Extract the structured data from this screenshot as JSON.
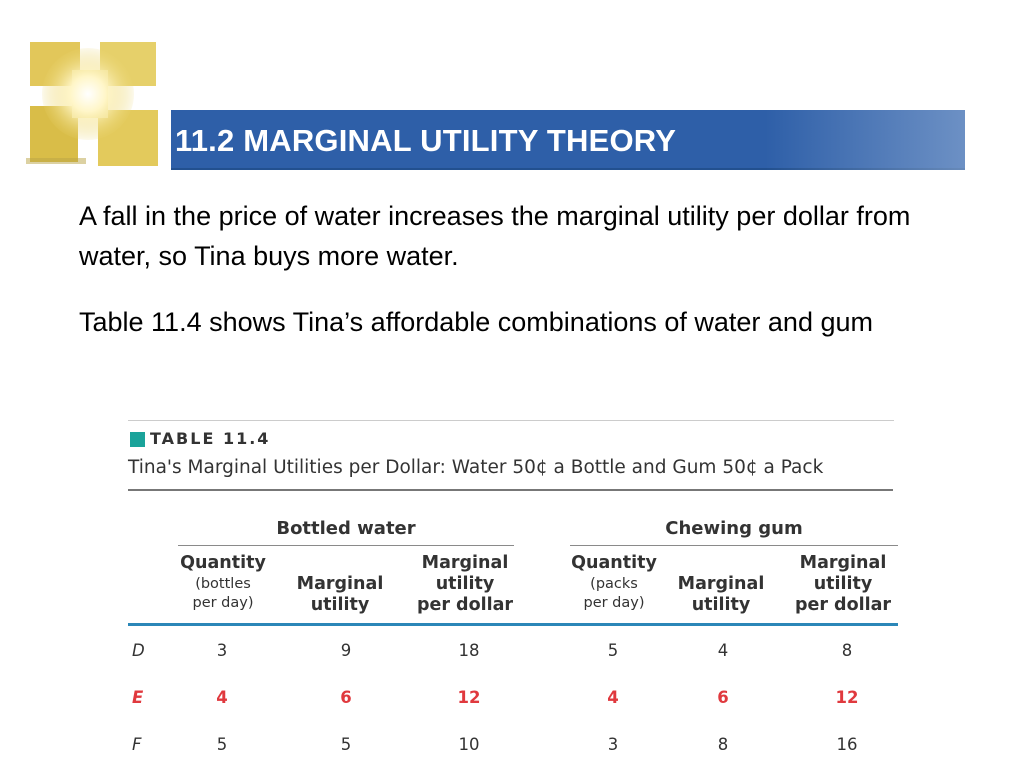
{
  "slide": {
    "title": "11.2 MARGINAL UTILITY THEORY",
    "paragraphs": [
      "A fall in the price of water increases the marginal utility per dollar from water, so Tina buys more water.",
      "Table 11.4 shows Tina’s affordable combinations of water and gum"
    ],
    "colors": {
      "title_bar": "#2e5fa8",
      "logo": "#e6cf63",
      "highlight": "#e0393e",
      "rule": "#2b87b8"
    }
  },
  "table": {
    "tag": "TABLE 11.4",
    "caption": "Tina's Marginal Utilities per Dollar: Water 50¢ a Bottle and Gum 50¢ a Pack",
    "groups": {
      "water": "Bottled water",
      "gum": "Chewing gum"
    },
    "columns": {
      "w_qty": {
        "l1": "Quantity",
        "l2": "(bottles",
        "l3": "per day)"
      },
      "w_mu": {
        "l1": "Marginal",
        "l2": "utility"
      },
      "w_mupd": {
        "l1": "Marginal",
        "l2": "utility",
        "l3": "per dollar"
      },
      "g_qty": {
        "l1": "Quantity",
        "l2": "(packs",
        "l3": "per day)"
      },
      "g_mu": {
        "l1": "Marginal",
        "l2": "utility"
      },
      "g_mupd": {
        "l1": "Marginal",
        "l2": "utility",
        "l3": "per dollar"
      }
    },
    "rows": [
      {
        "label": "D",
        "highlight": false,
        "cells": [
          "3",
          "9",
          "18",
          "5",
          "4",
          "8"
        ]
      },
      {
        "label": "E",
        "highlight": true,
        "cells": [
          "4",
          "6",
          "12",
          "4",
          "6",
          "12"
        ]
      },
      {
        "label": "F",
        "highlight": false,
        "cells": [
          "5",
          "5",
          "10",
          "3",
          "8",
          "16"
        ]
      }
    ]
  }
}
